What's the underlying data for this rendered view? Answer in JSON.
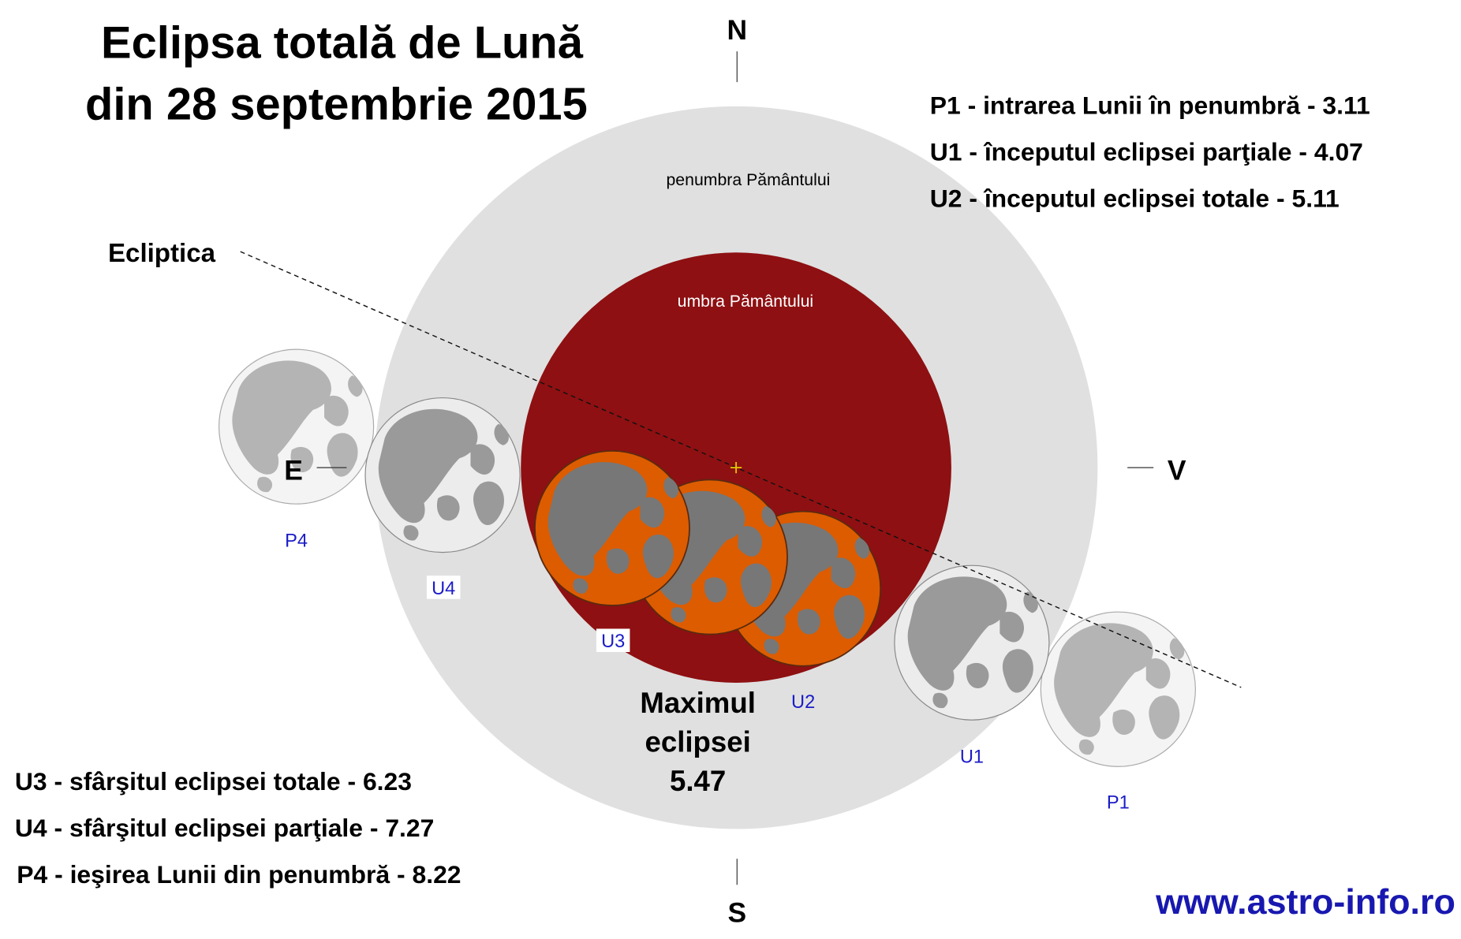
{
  "title": [
    "Eclipsa totală de Lună",
    "din 28 septembrie 2015"
  ],
  "events_top": [
    "P1 - intrarea Lunii în penumbră - 3.11",
    "U1 - începutul eclipsei parţiale - 4.07",
    "U2 - începutul eclipsei totale - 5.11"
  ],
  "events_bottom": [
    "U3 - sfârşitul eclipsei totale - 6.23",
    "U4 - sfârşitul eclipsei parţiale - 7.27",
    "P4 - ieşirea Lunii din penumbră - 8.22"
  ],
  "regions": {
    "penumbra": "penumbra Pământului",
    "umbra": "umbra Pământului"
  },
  "ecliptic": "Ecliptica",
  "compass": {
    "north": "N",
    "south": "S",
    "east": "E",
    "west": "V"
  },
  "moons": [
    {
      "label": "P4"
    },
    {
      "label": "U4"
    },
    {
      "label": "U3"
    },
    {
      "label": "U2"
    },
    {
      "label": "U1"
    },
    {
      "label": "P1"
    }
  ],
  "maximum": [
    "Maximul",
    "eclipsei",
    "5.47"
  ],
  "url": "www.astro-info.ro"
}
